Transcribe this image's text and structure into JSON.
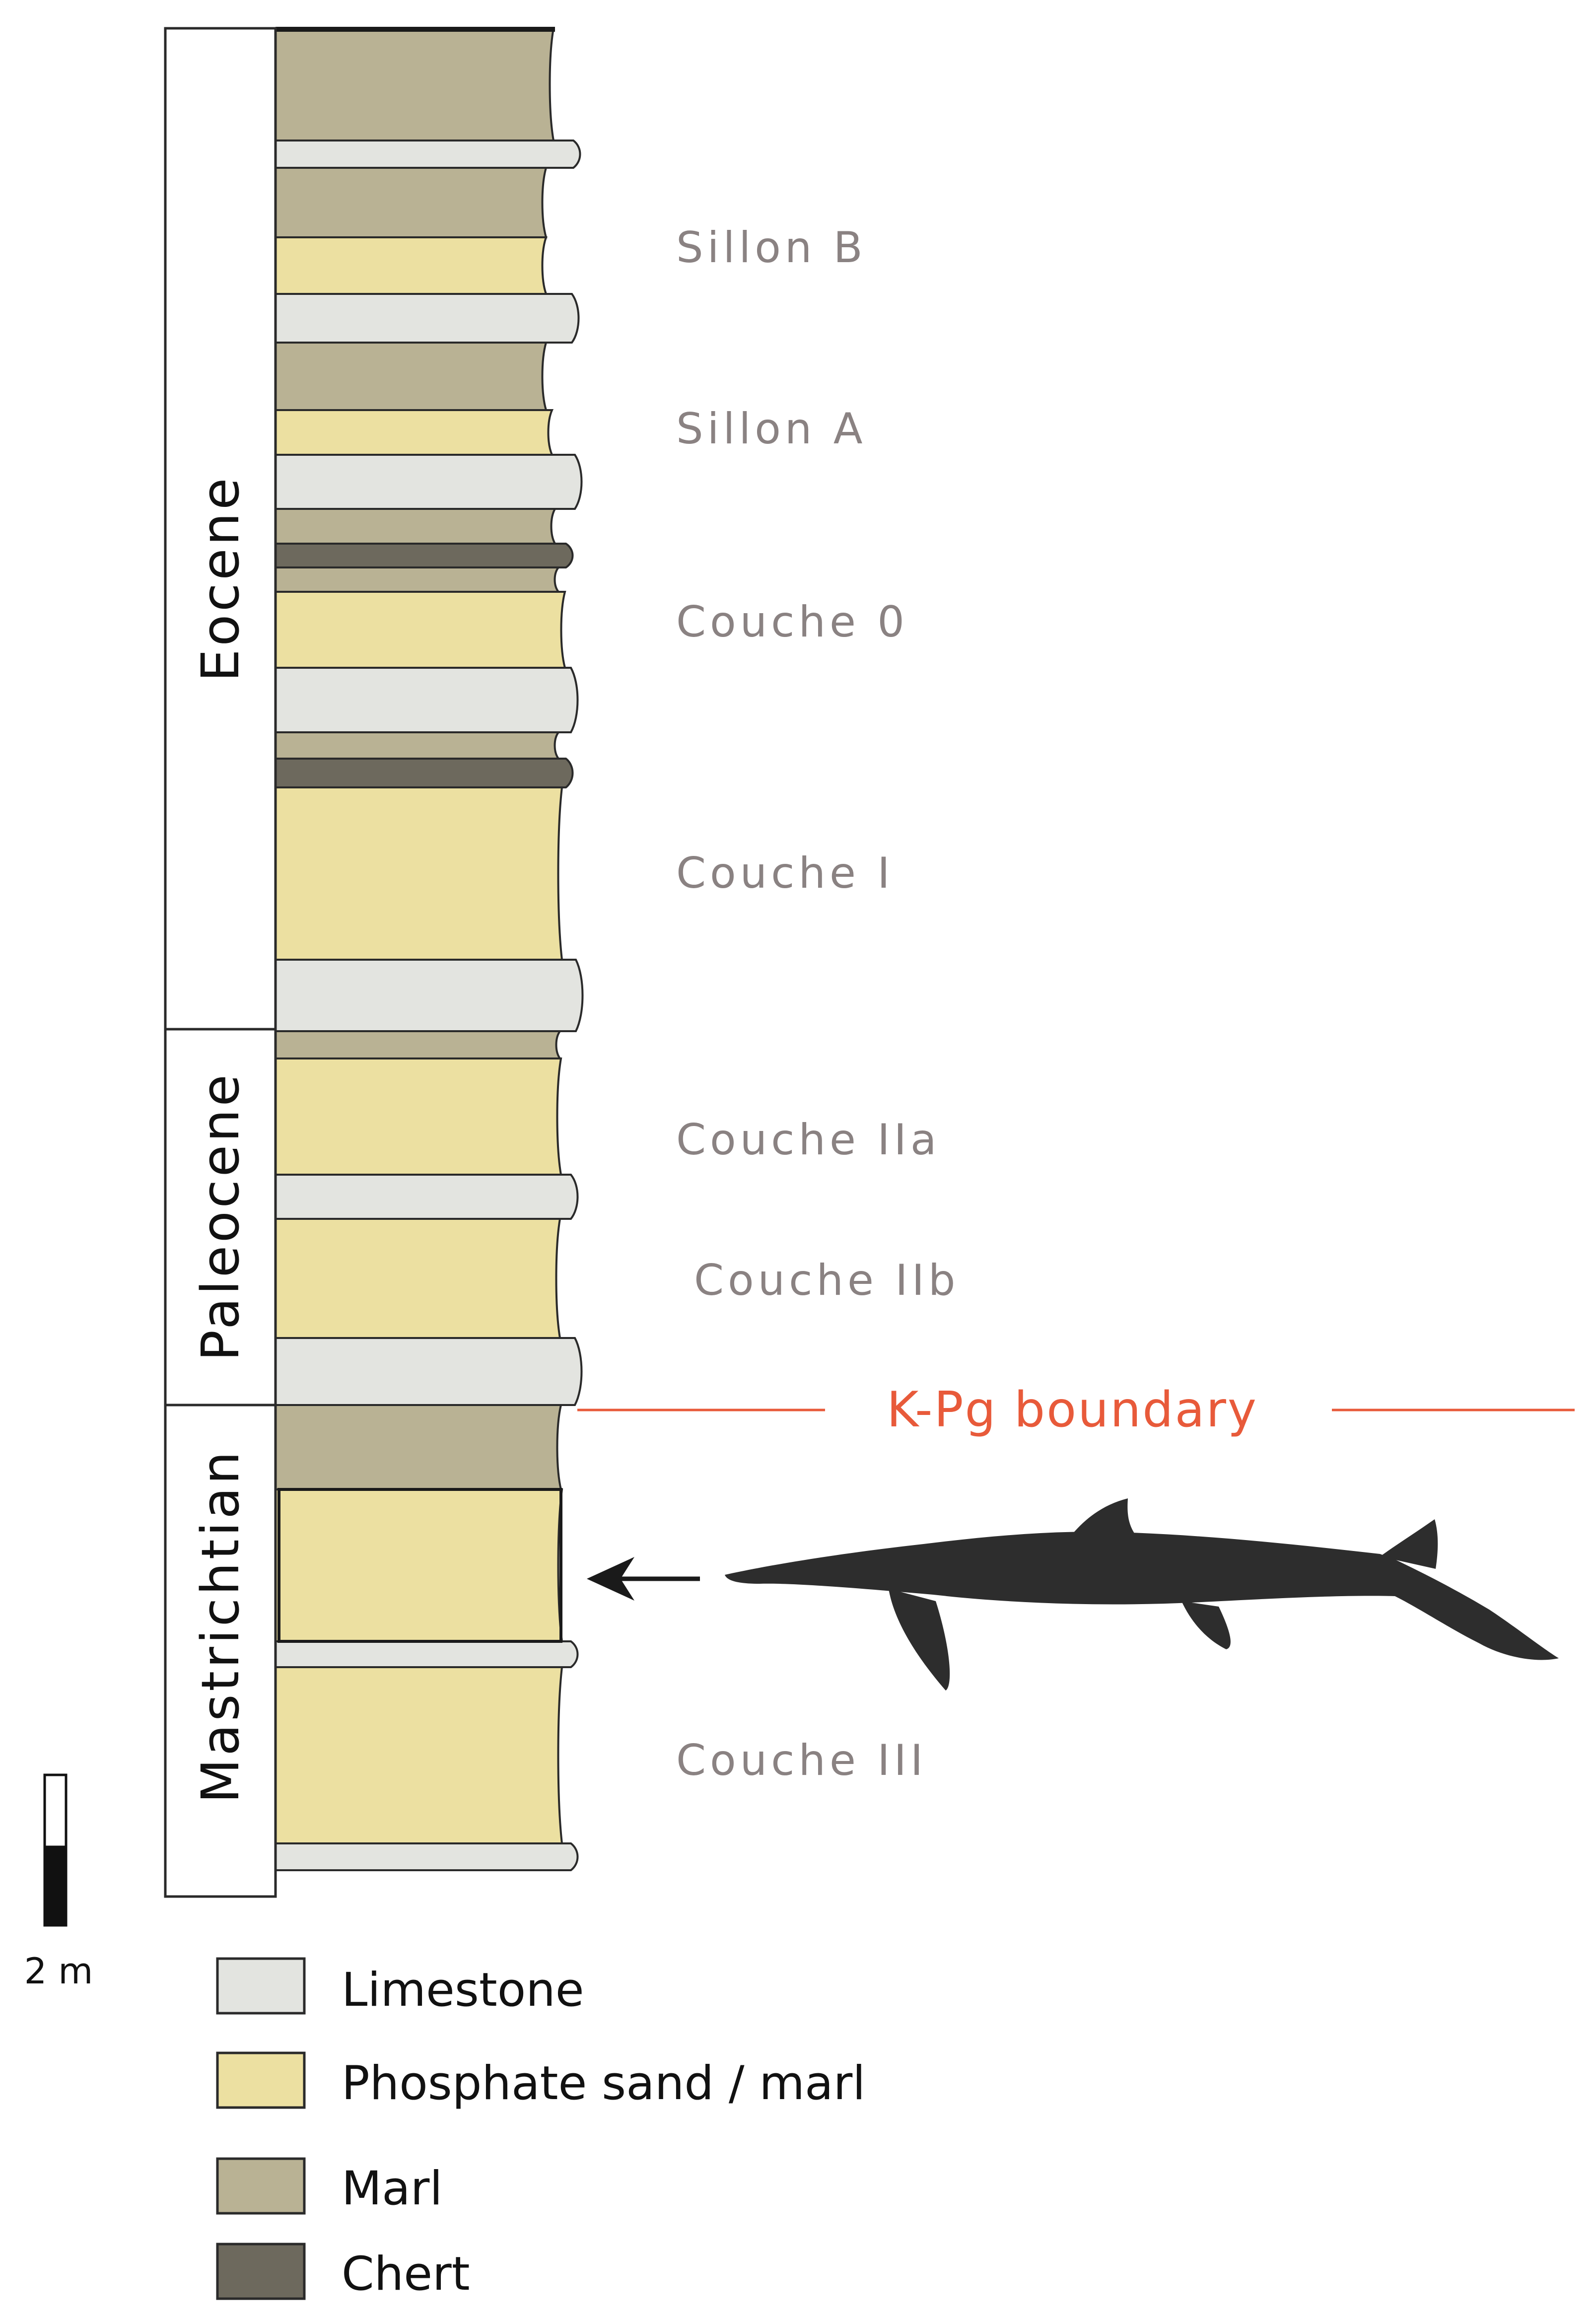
{
  "colors": {
    "limestone": "#e3e4e0",
    "phosphate": "#ece0a1",
    "marl": "#b9b294",
    "chert": "#6d695d",
    "outline": "#2a2a2a",
    "unit_label": "#8a8282",
    "boundary": "#e85a3a",
    "silhouette": "#2d2d2d"
  },
  "epochs": [
    {
      "name": "Eocene"
    },
    {
      "name": "Paleocene"
    },
    {
      "name": "Mastrichtian"
    }
  ],
  "units": [
    "Sillon B",
    "Sillon A",
    "Couche 0",
    "Couche I",
    "Couche IIa",
    "Couche IIb",
    "Couche III"
  ],
  "boundary_label": "K-Pg boundary",
  "scale_label": "2 m",
  "fossil_icon": "mosasaur-silhouette-icon",
  "layers": [
    "marl",
    "limestone",
    "marl",
    "phosphate",
    "limestone",
    "marl",
    "phosphate",
    "limestone",
    "marl",
    "chert",
    "marl",
    "phosphate",
    "limestone",
    "marl",
    "chert",
    "phosphate",
    "limestone",
    "marl",
    "phosphate",
    "limestone",
    "phosphate",
    "limestone",
    "marl",
    "phosphate",
    "limestone",
    "phosphate",
    "limestone"
  ],
  "legend": [
    {
      "key": "limestone",
      "label": "Limestone"
    },
    {
      "key": "phosphate",
      "label": "Phosphate sand / marl"
    },
    {
      "key": "marl",
      "label": "Marl"
    },
    {
      "key": "chert",
      "label": "Chert"
    }
  ]
}
